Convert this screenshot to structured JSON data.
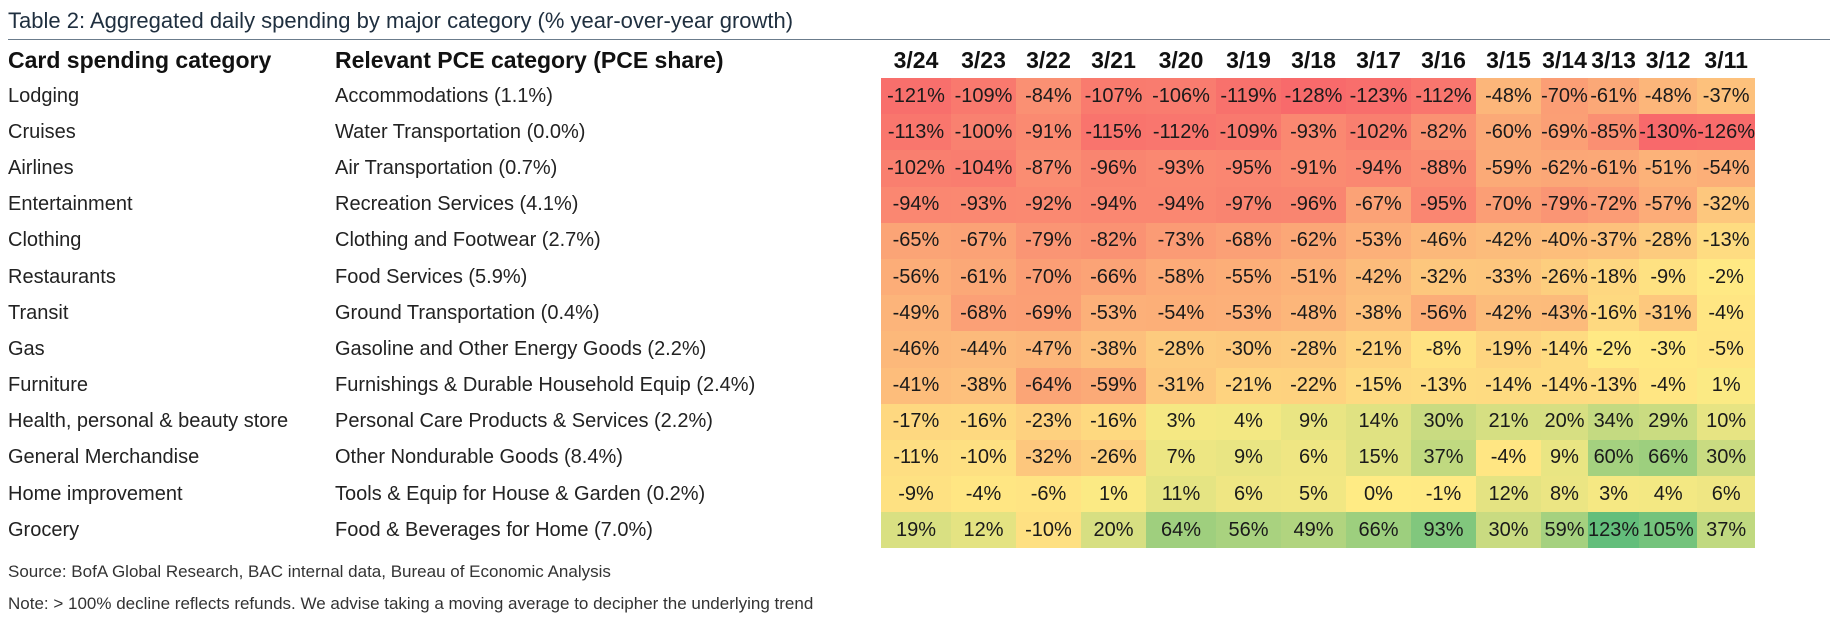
{
  "title": "Table 2: Aggregated daily spending by major category (% year-over-year growth)",
  "headers": {
    "category": "Card spending category",
    "pce": "Relevant PCE category (PCE share)",
    "dates": [
      "3/24",
      "3/23",
      "3/22",
      "3/21",
      "3/20",
      "3/19",
      "3/18",
      "3/17",
      "3/16",
      "3/15",
      "3/14",
      "3/13",
      "3/12",
      "3/11"
    ]
  },
  "rows": [
    {
      "category": "Lodging",
      "pce": "Accommodations (1.1%)",
      "values": [
        "-121%",
        "-109%",
        "-84%",
        "-107%",
        "-106%",
        "-119%",
        "-128%",
        "-123%",
        "-112%",
        "-48%",
        "-70%",
        "-61%",
        "-48%",
        "-37%"
      ],
      "nums": [
        -121,
        -109,
        -84,
        -107,
        -106,
        -119,
        -128,
        -123,
        -112,
        -48,
        -70,
        -61,
        -48,
        -37
      ]
    },
    {
      "category": "Cruises",
      "pce": "Water Transportation (0.0%)",
      "values": [
        "-113%",
        "-100%",
        "-91%",
        "-115%",
        "-112%",
        "-109%",
        "-93%",
        "-102%",
        "-82%",
        "-60%",
        "-69%",
        "-85%",
        "-130%",
        "-126%"
      ],
      "nums": [
        -113,
        -100,
        -91,
        -115,
        -112,
        -109,
        -93,
        -102,
        -82,
        -60,
        -69,
        -85,
        -130,
        -126
      ]
    },
    {
      "category": "Airlines",
      "pce": "Air Transportation (0.7%)",
      "values": [
        "-102%",
        "-104%",
        "-87%",
        "-96%",
        "-93%",
        "-95%",
        "-91%",
        "-94%",
        "-88%",
        "-59%",
        "-62%",
        "-61%",
        "-51%",
        "-54%"
      ],
      "nums": [
        -102,
        -104,
        -87,
        -96,
        -93,
        -95,
        -91,
        -94,
        -88,
        -59,
        -62,
        -61,
        -51,
        -54
      ]
    },
    {
      "category": "Entertainment",
      "pce": "Recreation Services (4.1%)",
      "values": [
        "-94%",
        "-93%",
        "-92%",
        "-94%",
        "-94%",
        "-97%",
        "-96%",
        "-67%",
        "-95%",
        "-70%",
        "-79%",
        "-72%",
        "-57%",
        "-32%"
      ],
      "nums": [
        -94,
        -93,
        -92,
        -94,
        -94,
        -97,
        -96,
        -67,
        -95,
        -70,
        -79,
        -72,
        -57,
        -32
      ]
    },
    {
      "category": "Clothing",
      "pce": "Clothing and Footwear (2.7%)",
      "values": [
        "-65%",
        "-67%",
        "-79%",
        "-82%",
        "-73%",
        "-68%",
        "-62%",
        "-53%",
        "-46%",
        "-42%",
        "-40%",
        "-37%",
        "-28%",
        "-13%"
      ],
      "nums": [
        -65,
        -67,
        -79,
        -82,
        -73,
        -68,
        -62,
        -53,
        -46,
        -42,
        -40,
        -37,
        -28,
        -13
      ]
    },
    {
      "category": "Restaurants",
      "pce": "Food Services (5.9%)",
      "values": [
        "-56%",
        "-61%",
        "-70%",
        "-66%",
        "-58%",
        "-55%",
        "-51%",
        "-42%",
        "-32%",
        "-33%",
        "-26%",
        "-18%",
        "-9%",
        "-2%"
      ],
      "nums": [
        -56,
        -61,
        -70,
        -66,
        -58,
        -55,
        -51,
        -42,
        -32,
        -33,
        -26,
        -18,
        -9,
        -2
      ]
    },
    {
      "category": "Transit",
      "pce": "Ground Transportation (0.4%)",
      "values": [
        "-49%",
        "-68%",
        "-69%",
        "-53%",
        "-54%",
        "-53%",
        "-48%",
        "-38%",
        "-56%",
        "-42%",
        "-43%",
        "-16%",
        "-31%",
        "-4%"
      ],
      "nums": [
        -49,
        -68,
        -69,
        -53,
        -54,
        -53,
        -48,
        -38,
        -56,
        -42,
        -43,
        -16,
        -31,
        -4
      ]
    },
    {
      "category": "Gas",
      "pce": "Gasoline and Other Energy Goods (2.2%)",
      "values": [
        "-46%",
        "-44%",
        "-47%",
        "-38%",
        "-28%",
        "-30%",
        "-28%",
        "-21%",
        "-8%",
        "-19%",
        "-14%",
        "-2%",
        "-3%",
        "-5%"
      ],
      "nums": [
        -46,
        -44,
        -47,
        -38,
        -28,
        -30,
        -28,
        -21,
        -8,
        -19,
        -14,
        -2,
        -3,
        -5
      ]
    },
    {
      "category": "Furniture",
      "pce": "Furnishings & Durable Household Equip (2.4%)",
      "values": [
        "-41%",
        "-38%",
        "-64%",
        "-59%",
        "-31%",
        "-21%",
        "-22%",
        "-15%",
        "-13%",
        "-14%",
        "-14%",
        "-13%",
        "-4%",
        "1%"
      ],
      "nums": [
        -41,
        -38,
        -64,
        -59,
        -31,
        -21,
        -22,
        -15,
        -13,
        -14,
        -14,
        -13,
        -4,
        1
      ]
    },
    {
      "category": "Health, personal & beauty store",
      "pce": "Personal Care Products & Services (2.2%)",
      "values": [
        "-17%",
        "-16%",
        "-23%",
        "-16%",
        "3%",
        "4%",
        "9%",
        "14%",
        "30%",
        "21%",
        "20%",
        "34%",
        "29%",
        "10%"
      ],
      "nums": [
        -17,
        -16,
        -23,
        -16,
        3,
        4,
        9,
        14,
        30,
        21,
        20,
        34,
        29,
        10
      ]
    },
    {
      "category": "General Merchandise",
      "pce": "Other Nondurable Goods (8.4%)",
      "values": [
        "-11%",
        "-10%",
        "-32%",
        "-26%",
        "7%",
        "9%",
        "6%",
        "15%",
        "37%",
        "-4%",
        "9%",
        "60%",
        "66%",
        "30%"
      ],
      "nums": [
        -11,
        -10,
        -32,
        -26,
        7,
        9,
        6,
        15,
        37,
        -4,
        9,
        60,
        66,
        30
      ]
    },
    {
      "category": "Home improvement",
      "pce": "Tools & Equip for House & Garden (0.2%)",
      "values": [
        "-9%",
        "-4%",
        "-6%",
        "1%",
        "11%",
        "6%",
        "5%",
        "0%",
        "-1%",
        "12%",
        "8%",
        "3%",
        "4%",
        "6%"
      ],
      "nums": [
        -9,
        -4,
        -6,
        1,
        11,
        6,
        5,
        0,
        -1,
        12,
        8,
        3,
        4,
        6
      ]
    },
    {
      "category": "Grocery",
      "pce": "Food & Beverages for Home (7.0%)",
      "values": [
        "19%",
        "12%",
        "-10%",
        "20%",
        "64%",
        "56%",
        "49%",
        "66%",
        "93%",
        "30%",
        "59%",
        "123%",
        "105%",
        "37%"
      ],
      "nums": [
        19,
        12,
        -10,
        20,
        64,
        56,
        49,
        66,
        93,
        30,
        59,
        123,
        105,
        37
      ]
    }
  ],
  "colors": {
    "red": "#f8696b",
    "yellow": "#ffeb84",
    "green": "#63be7b"
  },
  "source": "Source: BofA Global Research, BAC internal data, Bureau of Economic Analysis",
  "note": "Note: > 100% decline reflects refunds. We advise taking a moving average to decipher the underlying trend"
}
